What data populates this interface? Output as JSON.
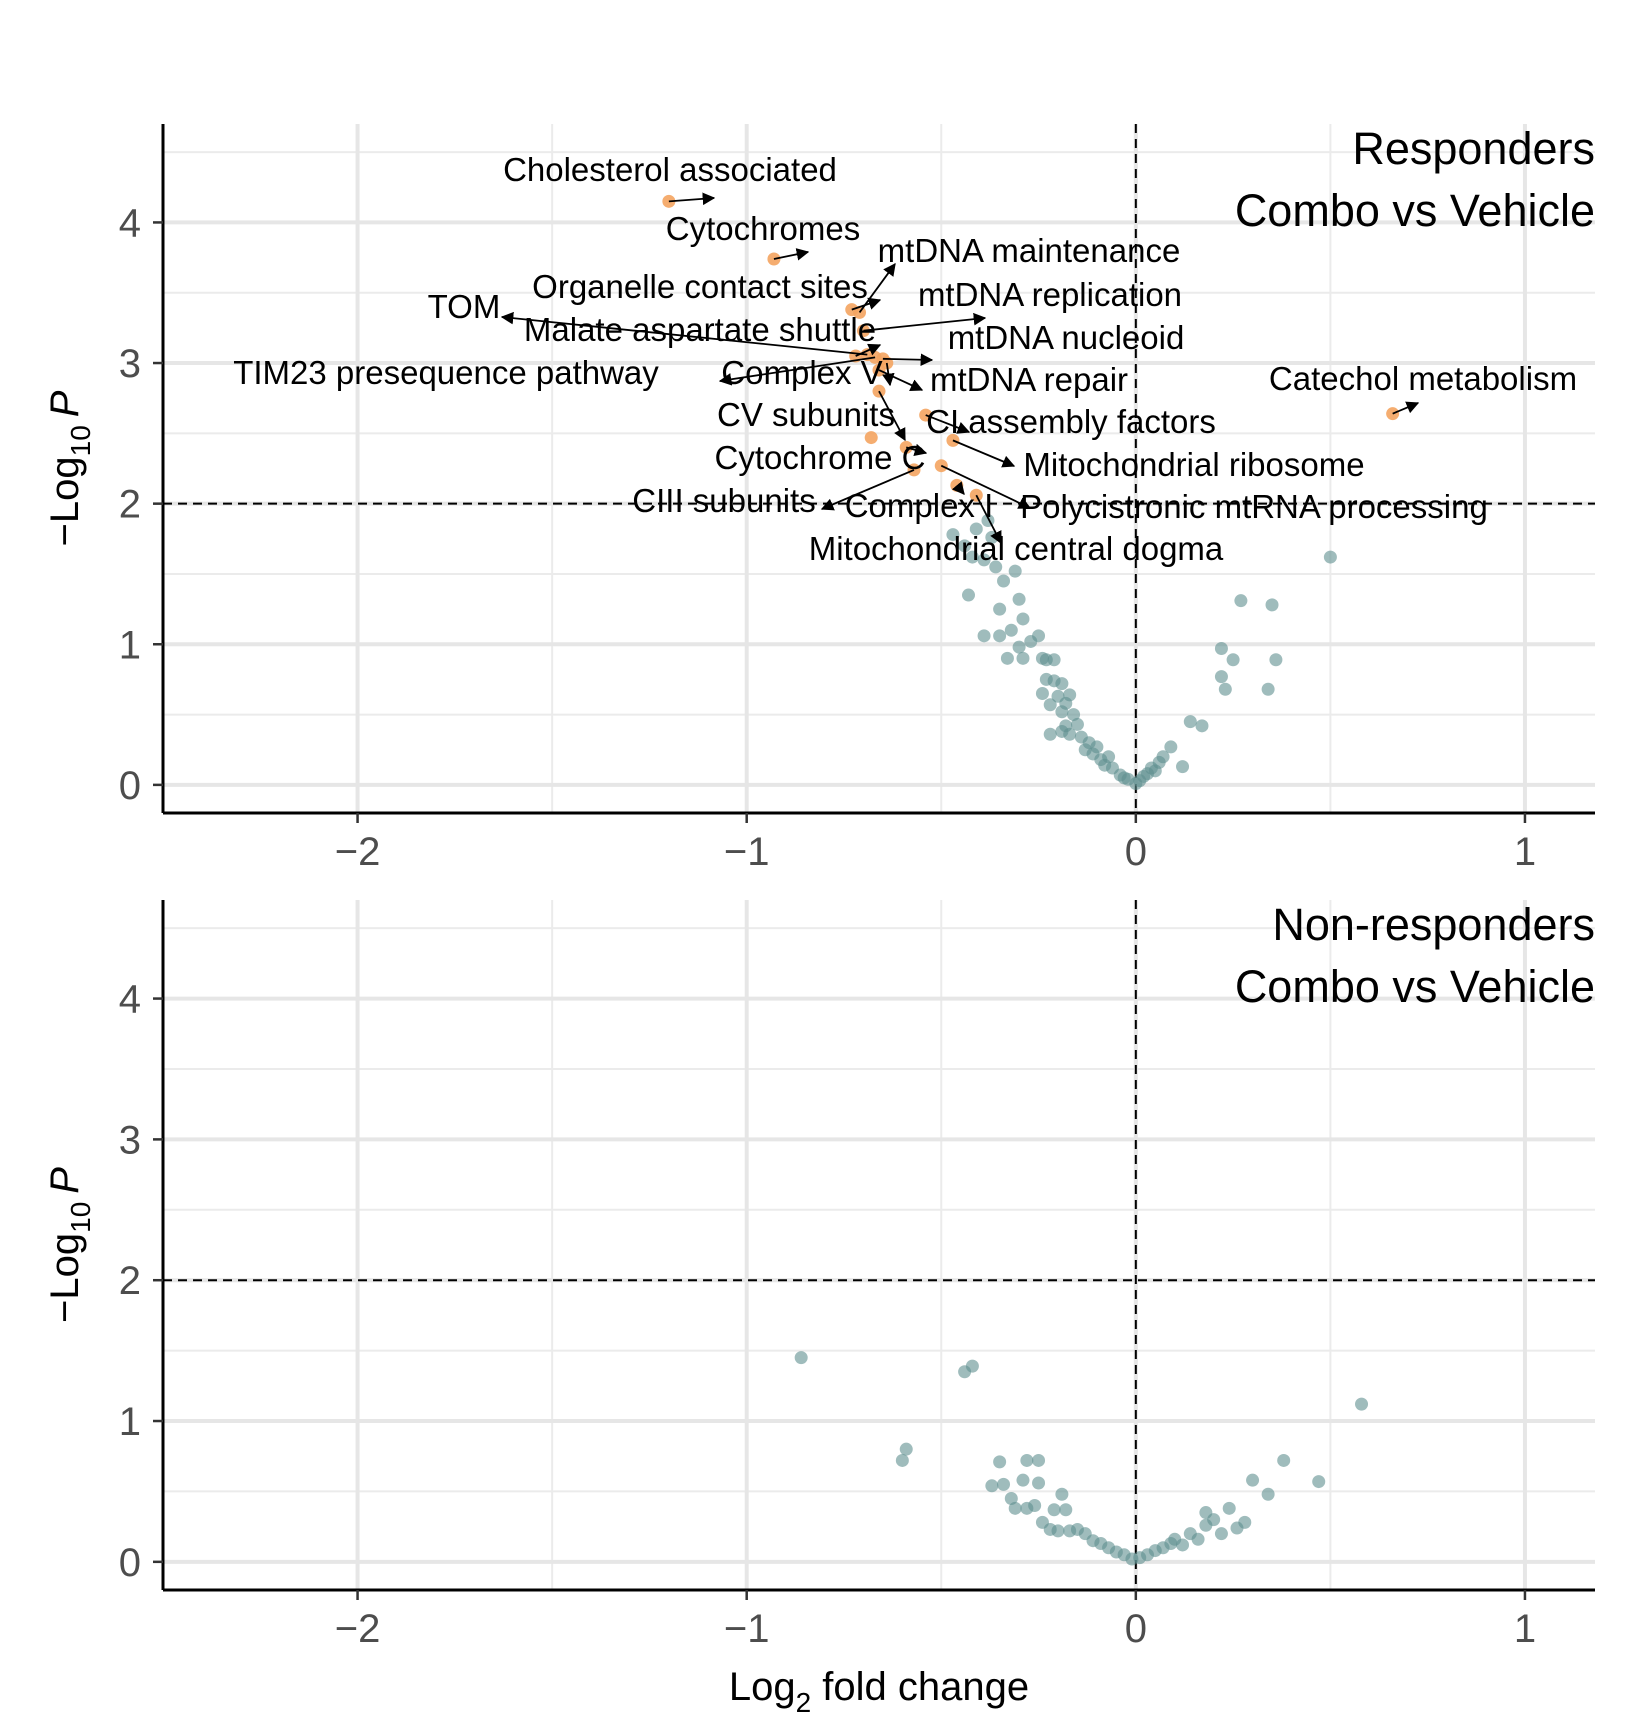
{
  "chart_data": [
    {
      "type": "scatter",
      "title": [
        "Responders",
        "Combo vs Vehicle"
      ],
      "xlabel": {
        "base": "Log",
        "sub": "2",
        "rest": " fold change"
      },
      "ylabel": {
        "pre": "−Log",
        "sub": "10",
        "italic": "P"
      },
      "xlim": [
        -2.5,
        1.18
      ],
      "ylim": [
        -0.2,
        4.7
      ],
      "x_ticks": [
        -2,
        -1,
        0,
        1
      ],
      "x_tick_labels": [
        "−2",
        "−1",
        "0",
        "1"
      ],
      "y_ticks": [
        0,
        1,
        2,
        3,
        4
      ],
      "y_tick_labels": [
        "0",
        "1",
        "2",
        "3",
        "4"
      ],
      "show_x_axis_title": false,
      "grid": true,
      "vline": 0,
      "hline": 2,
      "colors": {
        "significant": "#f4a460",
        "nonsignificant": "#5f8f8f"
      },
      "significant_points": [
        {
          "label": "Cholesterol associated",
          "x": -1.2,
          "y": 4.15
        },
        {
          "label": "Cytochromes",
          "x": -0.93,
          "y": 3.74
        },
        {
          "label": "mtDNA maintenance",
          "x": -0.71,
          "y": 3.36
        },
        {
          "label": "Organelle contact sites",
          "x": -0.73,
          "y": 3.38
        },
        {
          "label": "mtDNA replication",
          "x": -0.7,
          "y": 3.23
        },
        {
          "label": "TOM",
          "x": -0.69,
          "y": 3.06
        },
        {
          "label": "Malate aspartate shuttle",
          "x": -0.72,
          "y": 3.05
        },
        {
          "label": "mtDNA nucleoid",
          "x": -0.65,
          "y": 3.03
        },
        {
          "label": "TIM23 presequence pathway",
          "x": -0.67,
          "y": 3.04
        },
        {
          "label": "Complex V",
          "x": -0.64,
          "y": 3.0
        },
        {
          "label": "mtDNA repair",
          "x": -0.66,
          "y": 2.95
        },
        {
          "label": "Catechol metabolism",
          "x": 0.66,
          "y": 2.64
        },
        {
          "label": "CV subunits",
          "x": -0.66,
          "y": 2.8
        },
        {
          "label": "CI assembly factors",
          "x": -0.54,
          "y": 2.63
        },
        {
          "label": "Mitochondrial ribosome",
          "x": -0.47,
          "y": 2.45
        },
        {
          "label": "Cytochrome C",
          "x": -0.59,
          "y": 2.4
        },
        {
          "label": "CIII subunits",
          "x": -0.57,
          "y": 2.24
        },
        {
          "label": "Complex I",
          "x": -0.46,
          "y": 2.13
        },
        {
          "label": "Polycistronic mtRNA processing",
          "x": -0.5,
          "y": 2.27
        },
        {
          "label": "Mitochondrial central dogma",
          "x": -0.41,
          "y": 2.06
        },
        {
          "label": "",
          "x": -0.68,
          "y": 2.47
        }
      ],
      "points": [
        {
          "x": -0.47,
          "y": 1.78
        },
        {
          "x": -0.44,
          "y": 1.7
        },
        {
          "x": -0.41,
          "y": 1.82
        },
        {
          "x": -0.38,
          "y": 1.88
        },
        {
          "x": -0.37,
          "y": 1.76
        },
        {
          "x": -0.42,
          "y": 1.62
        },
        {
          "x": -0.39,
          "y": 1.6
        },
        {
          "x": -0.36,
          "y": 1.55
        },
        {
          "x": -0.34,
          "y": 1.45
        },
        {
          "x": -0.31,
          "y": 1.52
        },
        {
          "x": -0.43,
          "y": 1.35
        },
        {
          "x": -0.3,
          "y": 1.32
        },
        {
          "x": -0.35,
          "y": 1.25
        },
        {
          "x": -0.32,
          "y": 1.1
        },
        {
          "x": -0.29,
          "y": 1.18
        },
        {
          "x": -0.39,
          "y": 1.06
        },
        {
          "x": -0.35,
          "y": 1.06
        },
        {
          "x": -0.27,
          "y": 1.02
        },
        {
          "x": -0.25,
          "y": 1.06
        },
        {
          "x": -0.3,
          "y": 0.98
        },
        {
          "x": -0.33,
          "y": 0.9
        },
        {
          "x": -0.29,
          "y": 0.9
        },
        {
          "x": -0.24,
          "y": 0.9
        },
        {
          "x": -0.23,
          "y": 0.89
        },
        {
          "x": -0.21,
          "y": 0.89
        },
        {
          "x": -0.23,
          "y": 0.75
        },
        {
          "x": -0.21,
          "y": 0.74
        },
        {
          "x": -0.19,
          "y": 0.72
        },
        {
          "x": -0.24,
          "y": 0.65
        },
        {
          "x": -0.2,
          "y": 0.63
        },
        {
          "x": -0.17,
          "y": 0.64
        },
        {
          "x": -0.18,
          "y": 0.58
        },
        {
          "x": -0.22,
          "y": 0.57
        },
        {
          "x": -0.19,
          "y": 0.52
        },
        {
          "x": -0.16,
          "y": 0.5
        },
        {
          "x": -0.18,
          "y": 0.42
        },
        {
          "x": -0.15,
          "y": 0.43
        },
        {
          "x": -0.22,
          "y": 0.36
        },
        {
          "x": -0.19,
          "y": 0.38
        },
        {
          "x": -0.17,
          "y": 0.36
        },
        {
          "x": -0.14,
          "y": 0.34
        },
        {
          "x": -0.12,
          "y": 0.3
        },
        {
          "x": -0.1,
          "y": 0.27
        },
        {
          "x": -0.13,
          "y": 0.25
        },
        {
          "x": -0.11,
          "y": 0.22
        },
        {
          "x": -0.09,
          "y": 0.18
        },
        {
          "x": -0.07,
          "y": 0.2
        },
        {
          "x": -0.08,
          "y": 0.14
        },
        {
          "x": -0.06,
          "y": 0.12
        },
        {
          "x": -0.04,
          "y": 0.07
        },
        {
          "x": -0.03,
          "y": 0.05
        },
        {
          "x": -0.02,
          "y": 0.04
        },
        {
          "x": 0.0,
          "y": 0.01
        },
        {
          "x": 0.01,
          "y": 0.03
        },
        {
          "x": 0.02,
          "y": 0.06
        },
        {
          "x": 0.03,
          "y": 0.08
        },
        {
          "x": 0.05,
          "y": 0.1
        },
        {
          "x": 0.06,
          "y": 0.16
        },
        {
          "x": 0.07,
          "y": 0.2
        },
        {
          "x": 0.09,
          "y": 0.27
        },
        {
          "x": 0.04,
          "y": 0.12
        },
        {
          "x": 0.12,
          "y": 0.13
        },
        {
          "x": 0.14,
          "y": 0.45
        },
        {
          "x": 0.17,
          "y": 0.42
        },
        {
          "x": 0.22,
          "y": 0.77
        },
        {
          "x": 0.22,
          "y": 0.97
        },
        {
          "x": 0.23,
          "y": 0.68
        },
        {
          "x": 0.25,
          "y": 0.89
        },
        {
          "x": 0.27,
          "y": 1.31
        },
        {
          "x": 0.35,
          "y": 1.28
        },
        {
          "x": 0.34,
          "y": 0.68
        },
        {
          "x": 0.36,
          "y": 0.89
        },
        {
          "x": 0.5,
          "y": 1.62
        }
      ]
    },
    {
      "type": "scatter",
      "title": [
        "Non-responders",
        "Combo vs Vehicle"
      ],
      "xlabel": {
        "base": "Log",
        "sub": "2",
        "rest": " fold change"
      },
      "ylabel": {
        "pre": "−Log",
        "sub": "10",
        "italic": "P"
      },
      "xlim": [
        -2.5,
        1.18
      ],
      "ylim": [
        -0.2,
        4.7
      ],
      "x_ticks": [
        -2,
        -1,
        0,
        1
      ],
      "x_tick_labels": [
        "−2",
        "−1",
        "0",
        "1"
      ],
      "y_ticks": [
        0,
        1,
        2,
        3,
        4
      ],
      "y_tick_labels": [
        "0",
        "1",
        "2",
        "3",
        "4"
      ],
      "show_x_axis_title": true,
      "grid": true,
      "vline": 0,
      "hline": 2,
      "colors": {
        "significant": "#f4a460",
        "nonsignificant": "#5f8f8f"
      },
      "significant_points": [],
      "points": [
        {
          "x": -0.86,
          "y": 1.45
        },
        {
          "x": -0.44,
          "y": 1.35
        },
        {
          "x": -0.42,
          "y": 1.39
        },
        {
          "x": -0.59,
          "y": 0.8
        },
        {
          "x": -0.6,
          "y": 0.72
        },
        {
          "x": -0.35,
          "y": 0.71
        },
        {
          "x": -0.28,
          "y": 0.72
        },
        {
          "x": -0.25,
          "y": 0.72
        },
        {
          "x": -0.37,
          "y": 0.54
        },
        {
          "x": -0.34,
          "y": 0.55
        },
        {
          "x": -0.32,
          "y": 0.45
        },
        {
          "x": -0.29,
          "y": 0.58
        },
        {
          "x": -0.25,
          "y": 0.56
        },
        {
          "x": -0.28,
          "y": 0.38
        },
        {
          "x": -0.26,
          "y": 0.4
        },
        {
          "x": -0.31,
          "y": 0.38
        },
        {
          "x": -0.19,
          "y": 0.48
        },
        {
          "x": -0.21,
          "y": 0.37
        },
        {
          "x": -0.18,
          "y": 0.37
        },
        {
          "x": -0.24,
          "y": 0.28
        },
        {
          "x": -0.22,
          "y": 0.23
        },
        {
          "x": -0.2,
          "y": 0.22
        },
        {
          "x": -0.17,
          "y": 0.22
        },
        {
          "x": -0.15,
          "y": 0.23
        },
        {
          "x": -0.13,
          "y": 0.2
        },
        {
          "x": -0.11,
          "y": 0.15
        },
        {
          "x": -0.09,
          "y": 0.13
        },
        {
          "x": -0.07,
          "y": 0.1
        },
        {
          "x": -0.05,
          "y": 0.07
        },
        {
          "x": -0.03,
          "y": 0.05
        },
        {
          "x": -0.01,
          "y": 0.02
        },
        {
          "x": 0.01,
          "y": 0.03
        },
        {
          "x": 0.03,
          "y": 0.05
        },
        {
          "x": 0.05,
          "y": 0.08
        },
        {
          "x": 0.07,
          "y": 0.1
        },
        {
          "x": 0.09,
          "y": 0.13
        },
        {
          "x": 0.1,
          "y": 0.16
        },
        {
          "x": 0.12,
          "y": 0.12
        },
        {
          "x": 0.14,
          "y": 0.2
        },
        {
          "x": 0.16,
          "y": 0.16
        },
        {
          "x": 0.18,
          "y": 0.26
        },
        {
          "x": 0.2,
          "y": 0.3
        },
        {
          "x": 0.22,
          "y": 0.2
        },
        {
          "x": 0.24,
          "y": 0.38
        },
        {
          "x": 0.18,
          "y": 0.35
        },
        {
          "x": 0.26,
          "y": 0.24
        },
        {
          "x": 0.28,
          "y": 0.28
        },
        {
          "x": 0.3,
          "y": 0.58
        },
        {
          "x": 0.34,
          "y": 0.48
        },
        {
          "x": 0.38,
          "y": 0.72
        },
        {
          "x": 0.47,
          "y": 0.57
        },
        {
          "x": 0.58,
          "y": 1.12
        }
      ]
    }
  ]
}
